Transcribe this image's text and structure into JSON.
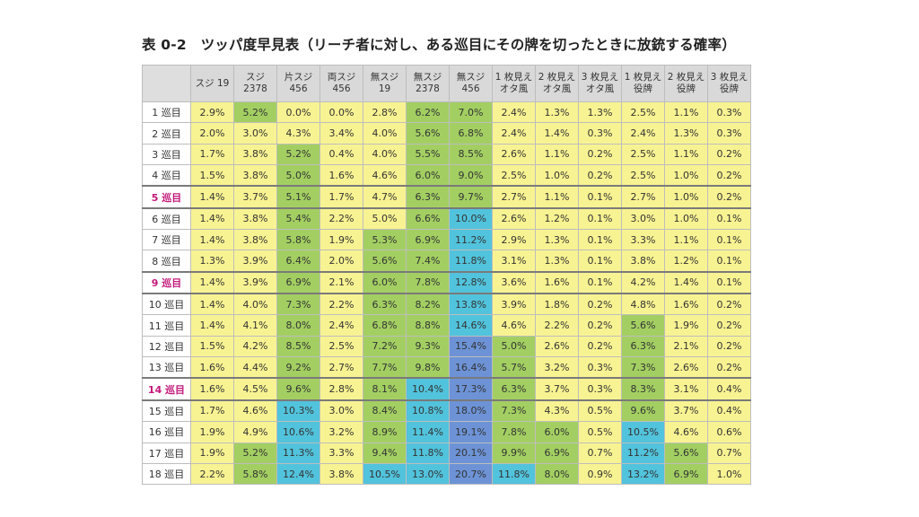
{
  "title": "表 0-2　ツッパ度早見表（リーチ者に対し、ある巡目にその牌を切ったときに放銃する確率）",
  "columns": [
    "スジ 19",
    "スジ\n2378",
    "片スジ\n456",
    "両スジ\n456",
    "無スジ\n19",
    "無スジ\n2378",
    "無スジ\n456",
    "1 枚見え\nオタ風",
    "2 枚見え\nオタ風",
    "3 枚見え\nオタ風",
    "1 枚見え\n役牌",
    "2 枚見え\n役牌",
    "3 枚見え\n役牌"
  ],
  "colors": {
    "yellow": "#f8f392",
    "green": "#a3cf62",
    "cyan": "#52c3dc",
    "blue": "#6d93d6",
    "highlight_text": "#c2187a"
  },
  "rows": [
    {
      "label": "1 巡目",
      "values": [
        "2.9%",
        "5.2%",
        "0.0%",
        "0.0%",
        "2.8%",
        "6.2%",
        "7.0%",
        "2.4%",
        "1.3%",
        "1.3%",
        "2.5%",
        "1.1%",
        "0.3%"
      ],
      "shades": [
        "y",
        "g",
        "y",
        "y",
        "y",
        "g",
        "g",
        "y",
        "y",
        "y",
        "y",
        "y",
        "y"
      ]
    },
    {
      "label": "2 巡目",
      "values": [
        "2.0%",
        "3.0%",
        "4.3%",
        "3.4%",
        "4.0%",
        "5.6%",
        "6.8%",
        "2.4%",
        "1.4%",
        "0.3%",
        "2.4%",
        "1.3%",
        "0.3%"
      ],
      "shades": [
        "y",
        "y",
        "y",
        "y",
        "y",
        "g",
        "g",
        "y",
        "y",
        "y",
        "y",
        "y",
        "y"
      ]
    },
    {
      "label": "3 巡目",
      "values": [
        "1.7%",
        "3.8%",
        "5.2%",
        "0.4%",
        "4.0%",
        "5.5%",
        "8.5%",
        "2.6%",
        "1.1%",
        "0.2%",
        "2.5%",
        "1.1%",
        "0.2%"
      ],
      "shades": [
        "y",
        "y",
        "g",
        "y",
        "y",
        "g",
        "g",
        "y",
        "y",
        "y",
        "y",
        "y",
        "y"
      ]
    },
    {
      "label": "4 巡目",
      "values": [
        "1.5%",
        "3.8%",
        "5.0%",
        "1.6%",
        "4.6%",
        "6.0%",
        "9.0%",
        "2.5%",
        "1.0%",
        "0.2%",
        "2.5%",
        "1.0%",
        "0.2%"
      ],
      "shades": [
        "y",
        "y",
        "g",
        "y",
        "y",
        "g",
        "g",
        "y",
        "y",
        "y",
        "y",
        "y",
        "y"
      ]
    },
    {
      "label": "5 巡目",
      "hl": true,
      "sep": true,
      "values": [
        "1.4%",
        "3.7%",
        "5.1%",
        "1.7%",
        "4.7%",
        "6.3%",
        "9.7%",
        "2.7%",
        "1.1%",
        "0.1%",
        "2.7%",
        "1.0%",
        "0.2%"
      ],
      "shades": [
        "y",
        "y",
        "g",
        "y",
        "y",
        "g",
        "g",
        "y",
        "y",
        "y",
        "y",
        "y",
        "y"
      ]
    },
    {
      "label": "6 巡目",
      "sep": true,
      "values": [
        "1.4%",
        "3.8%",
        "5.4%",
        "2.2%",
        "5.0%",
        "6.6%",
        "10.0%",
        "2.6%",
        "1.2%",
        "0.1%",
        "3.0%",
        "1.0%",
        "0.1%"
      ],
      "shades": [
        "y",
        "y",
        "g",
        "y",
        "y",
        "g",
        "c",
        "y",
        "y",
        "y",
        "y",
        "y",
        "y"
      ]
    },
    {
      "label": "7 巡目",
      "values": [
        "1.4%",
        "3.8%",
        "5.8%",
        "1.9%",
        "5.3%",
        "6.9%",
        "11.2%",
        "2.9%",
        "1.3%",
        "0.1%",
        "3.3%",
        "1.1%",
        "0.1%"
      ],
      "shades": [
        "y",
        "y",
        "g",
        "y",
        "g",
        "g",
        "c",
        "y",
        "y",
        "y",
        "y",
        "y",
        "y"
      ]
    },
    {
      "label": "8 巡目",
      "values": [
        "1.3%",
        "3.9%",
        "6.4%",
        "2.0%",
        "5.6%",
        "7.4%",
        "11.8%",
        "3.1%",
        "1.3%",
        "0.1%",
        "3.8%",
        "1.2%",
        "0.1%"
      ],
      "shades": [
        "y",
        "y",
        "g",
        "y",
        "g",
        "g",
        "c",
        "y",
        "y",
        "y",
        "y",
        "y",
        "y"
      ]
    },
    {
      "label": "9 巡目",
      "hl": true,
      "sep": true,
      "values": [
        "1.4%",
        "3.9%",
        "6.9%",
        "2.1%",
        "6.0%",
        "7.8%",
        "12.8%",
        "3.6%",
        "1.6%",
        "0.1%",
        "4.2%",
        "1.4%",
        "0.1%"
      ],
      "shades": [
        "y",
        "y",
        "g",
        "y",
        "g",
        "g",
        "c",
        "y",
        "y",
        "y",
        "y",
        "y",
        "y"
      ]
    },
    {
      "label": "10 巡目",
      "sep": true,
      "values": [
        "1.4%",
        "4.0%",
        "7.3%",
        "2.2%",
        "6.3%",
        "8.2%",
        "13.8%",
        "3.9%",
        "1.8%",
        "0.2%",
        "4.8%",
        "1.6%",
        "0.2%"
      ],
      "shades": [
        "y",
        "y",
        "g",
        "y",
        "g",
        "g",
        "c",
        "y",
        "y",
        "y",
        "y",
        "y",
        "y"
      ]
    },
    {
      "label": "11 巡目",
      "values": [
        "1.4%",
        "4.1%",
        "8.0%",
        "2.4%",
        "6.8%",
        "8.8%",
        "14.6%",
        "4.6%",
        "2.2%",
        "0.2%",
        "5.6%",
        "1.9%",
        "0.2%"
      ],
      "shades": [
        "y",
        "y",
        "g",
        "y",
        "g",
        "g",
        "c",
        "y",
        "y",
        "y",
        "g",
        "y",
        "y"
      ]
    },
    {
      "label": "12 巡目",
      "values": [
        "1.5%",
        "4.2%",
        "8.5%",
        "2.5%",
        "7.2%",
        "9.3%",
        "15.4%",
        "5.0%",
        "2.6%",
        "0.2%",
        "6.3%",
        "2.1%",
        "0.2%"
      ],
      "shades": [
        "y",
        "y",
        "g",
        "y",
        "g",
        "g",
        "b",
        "g",
        "y",
        "y",
        "g",
        "y",
        "y"
      ]
    },
    {
      "label": "13 巡目",
      "values": [
        "1.6%",
        "4.4%",
        "9.2%",
        "2.7%",
        "7.7%",
        "9.8%",
        "16.4%",
        "5.7%",
        "3.2%",
        "0.3%",
        "7.3%",
        "2.6%",
        "0.2%"
      ],
      "shades": [
        "y",
        "y",
        "g",
        "y",
        "g",
        "g",
        "b",
        "g",
        "y",
        "y",
        "g",
        "y",
        "y"
      ]
    },
    {
      "label": "14 巡目",
      "hl": true,
      "sep": true,
      "values": [
        "1.6%",
        "4.5%",
        "9.6%",
        "2.8%",
        "8.1%",
        "10.4%",
        "17.3%",
        "6.3%",
        "3.7%",
        "0.3%",
        "8.3%",
        "3.1%",
        "0.4%"
      ],
      "shades": [
        "y",
        "y",
        "g",
        "y",
        "g",
        "c",
        "b",
        "g",
        "y",
        "y",
        "g",
        "y",
        "y"
      ]
    },
    {
      "label": "15 巡目",
      "sep": true,
      "values": [
        "1.7%",
        "4.6%",
        "10.3%",
        "3.0%",
        "8.4%",
        "10.8%",
        "18.0%",
        "7.3%",
        "4.3%",
        "0.5%",
        "9.6%",
        "3.7%",
        "0.4%"
      ],
      "shades": [
        "y",
        "y",
        "c",
        "y",
        "g",
        "c",
        "b",
        "g",
        "y",
        "y",
        "g",
        "y",
        "y"
      ]
    },
    {
      "label": "16 巡目",
      "values": [
        "1.9%",
        "4.9%",
        "10.6%",
        "3.2%",
        "8.9%",
        "11.4%",
        "19.1%",
        "7.8%",
        "6.0%",
        "0.5%",
        "10.5%",
        "4.6%",
        "0.6%"
      ],
      "shades": [
        "y",
        "y",
        "c",
        "y",
        "g",
        "c",
        "b",
        "g",
        "g",
        "y",
        "c",
        "y",
        "y"
      ]
    },
    {
      "label": "17 巡目",
      "values": [
        "1.9%",
        "5.2%",
        "11.3%",
        "3.3%",
        "9.4%",
        "11.8%",
        "20.1%",
        "9.9%",
        "6.9%",
        "0.7%",
        "11.2%",
        "5.6%",
        "0.7%"
      ],
      "shades": [
        "y",
        "g",
        "c",
        "y",
        "g",
        "c",
        "b",
        "g",
        "g",
        "y",
        "c",
        "g",
        "y"
      ]
    },
    {
      "label": "18 巡目",
      "values": [
        "2.2%",
        "5.8%",
        "12.4%",
        "3.8%",
        "10.5%",
        "13.0%",
        "20.7%",
        "11.8%",
        "8.0%",
        "0.9%",
        "13.2%",
        "6.9%",
        "1.0%"
      ],
      "shades": [
        "y",
        "g",
        "c",
        "y",
        "c",
        "c",
        "b",
        "c",
        "g",
        "y",
        "c",
        "g",
        "y"
      ]
    }
  ]
}
